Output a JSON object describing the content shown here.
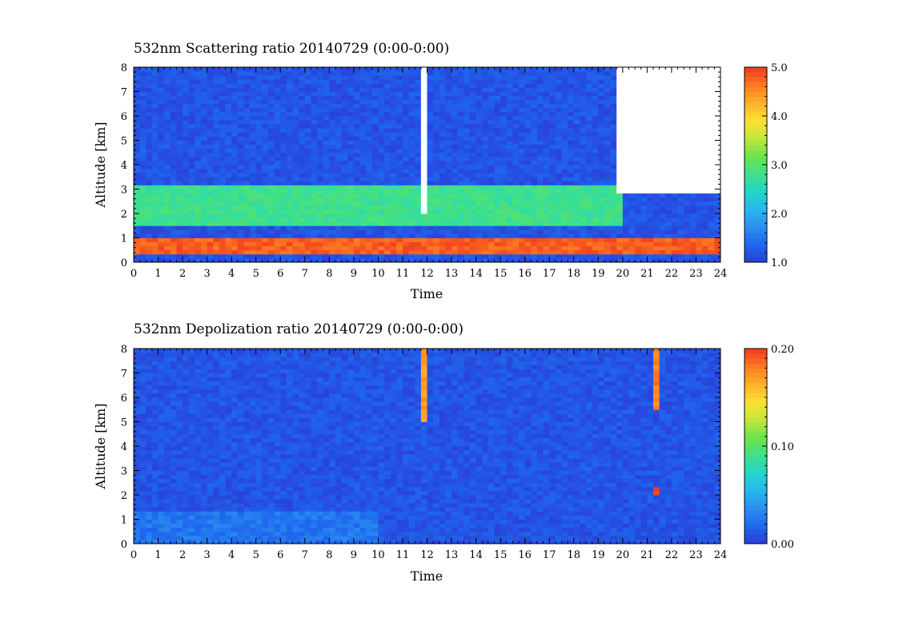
{
  "chart_data": [
    {
      "type": "heatmap",
      "title": "532nm Scattering ratio  20140729 (0:00-0:00)",
      "xlabel": "Time",
      "ylabel": "Altitude [km]",
      "xlim": [
        0,
        24
      ],
      "ylim": [
        0,
        8
      ],
      "x_ticks": [
        "0",
        "1",
        "2",
        "3",
        "4",
        "5",
        "6",
        "7",
        "8",
        "9",
        "10",
        "11",
        "12",
        "13",
        "14",
        "15",
        "16",
        "17",
        "18",
        "19",
        "20",
        "21",
        "22",
        "23",
        "24"
      ],
      "y_ticks": [
        "0",
        "1",
        "2",
        "3",
        "4",
        "5",
        "6",
        "7",
        "8"
      ],
      "colorbar": {
        "min": 1.0,
        "max": 5.0,
        "ticks": [
          "1.0",
          "2.0",
          "3.0",
          "4.0",
          "5.0"
        ]
      },
      "colormap": [
        "#2a3fd6",
        "#1f66ee",
        "#2a8ff0",
        "#28b8f0",
        "#22d6c8",
        "#3fe08a",
        "#6fe24a",
        "#bfe83a",
        "#ffe033",
        "#ffb02a",
        "#ff7a22",
        "#f03a1e"
      ],
      "missing_color": "#ffffff",
      "features": [
        {
          "name": "clear-air background",
          "time": [
            0,
            24
          ],
          "altitude_km": [
            0,
            8
          ],
          "value": 1.2
        },
        {
          "name": "boundary-layer cloud band",
          "time": [
            0,
            24
          ],
          "altitude_km": [
            0.3,
            1.0
          ],
          "value": 4.8
        },
        {
          "name": "aerosol layer",
          "time": [
            0,
            20
          ],
          "altitude_km": [
            1.5,
            3.2
          ],
          "value": 2.8
        },
        {
          "name": "no-data gap",
          "time": [
            11.8,
            12.0
          ],
          "altitude_km": [
            2.0,
            8.0
          ],
          "value": null
        },
        {
          "name": "no-data region",
          "time": [
            19.8,
            24
          ],
          "altitude_km": [
            2.8,
            8.0
          ],
          "value": null
        }
      ]
    },
    {
      "type": "heatmap",
      "title": "532nm Depolization ratio  20140729 (0:00-0:00)",
      "xlabel": "Time",
      "ylabel": "Altitude [km]",
      "xlim": [
        0,
        24
      ],
      "ylim": [
        0,
        8
      ],
      "x_ticks": [
        "0",
        "1",
        "2",
        "3",
        "4",
        "5",
        "6",
        "7",
        "8",
        "9",
        "10",
        "11",
        "12",
        "13",
        "14",
        "15",
        "16",
        "17",
        "18",
        "19",
        "20",
        "21",
        "22",
        "23",
        "24"
      ],
      "y_ticks": [
        "0",
        "1",
        "2",
        "3",
        "4",
        "5",
        "6",
        "7",
        "8"
      ],
      "colorbar": {
        "min": 0.0,
        "max": 0.2,
        "ticks": [
          "0.00",
          "0.10",
          "0.20"
        ]
      },
      "colormap": [
        "#2a3fd6",
        "#1f66ee",
        "#2a8ff0",
        "#28b8f0",
        "#22d6c8",
        "#3fe08a",
        "#6fe24a",
        "#bfe83a",
        "#ffe033",
        "#ffb02a",
        "#ff7a22",
        "#f03a1e"
      ],
      "features": [
        {
          "name": "background",
          "time": [
            0,
            24
          ],
          "altitude_km": [
            0,
            8
          ],
          "value": 0.01
        },
        {
          "name": "low depolarization layer",
          "time": [
            0,
            10
          ],
          "altitude_km": [
            0,
            1.4
          ],
          "value": 0.025
        },
        {
          "name": "high depolarization column",
          "time": [
            11.8,
            12.0
          ],
          "altitude_km": [
            5.0,
            8.0
          ],
          "value": 0.17
        },
        {
          "name": "high depolarization column",
          "time": [
            21.2,
            21.5
          ],
          "altitude_km": [
            5.5,
            8.0
          ],
          "value": 0.18
        },
        {
          "name": "point feature",
          "time": [
            21.2,
            21.5
          ],
          "altitude_km": [
            2.0,
            2.4
          ],
          "value": 0.2
        }
      ]
    }
  ]
}
